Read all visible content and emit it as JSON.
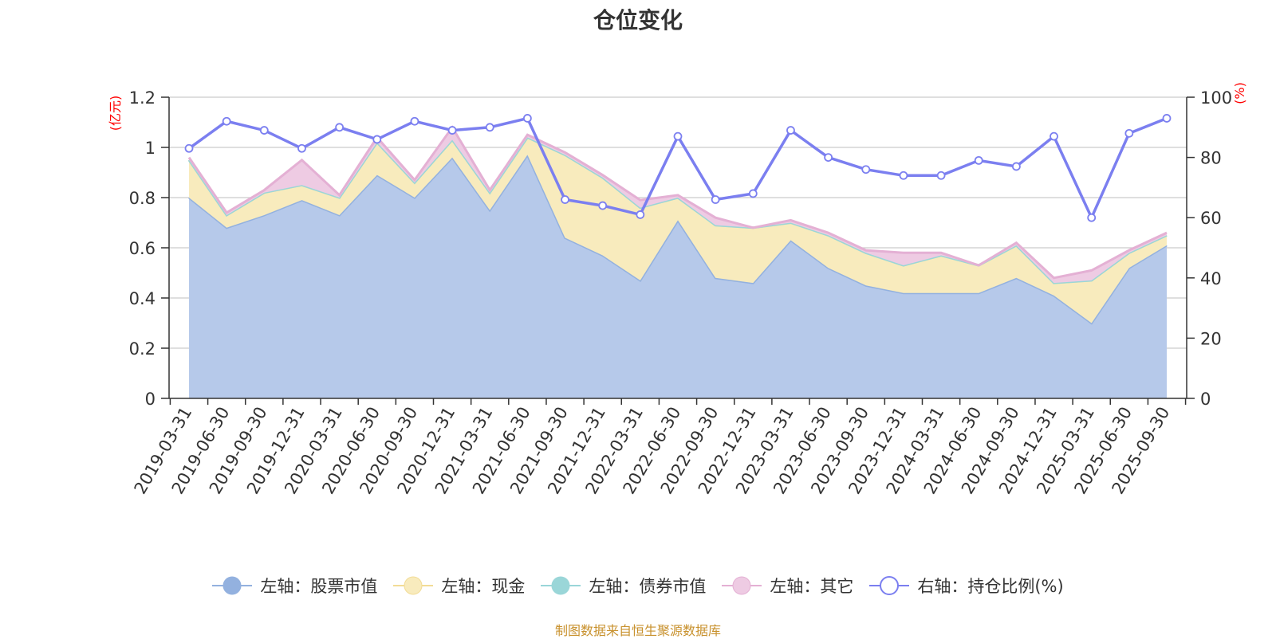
{
  "title": "仓位变化",
  "source_note": "制图数据来自恒生聚源数据库",
  "colors": {
    "stock_fill": "#b6c9ea",
    "stock_line": "#93b1df",
    "cash_fill": "#f8ebbd",
    "cash_line": "#f2dc96",
    "bond_fill": "#9ad6d8",
    "bond_line": "#9ad6d8",
    "other_fill": "#eecbe3",
    "other_line": "#e4b0d4",
    "ratio_line": "#7b7ff0",
    "axis_label_color": "#ff0000",
    "grid": "#cccccc",
    "text": "#333333"
  },
  "legend": [
    {
      "label": "左轴：股票市值",
      "key": "stock",
      "marker": "filled-circle-icon"
    },
    {
      "label": "左轴：现金",
      "key": "cash",
      "marker": "filled-circle-icon"
    },
    {
      "label": "左轴：债券市值",
      "key": "bond",
      "marker": "filled-circle-icon"
    },
    {
      "label": "左轴：其它",
      "key": "other",
      "marker": "filled-circle-icon"
    },
    {
      "label": "右轴：持仓比例(%)",
      "key": "ratio",
      "marker": "hollow-circle-icon"
    }
  ],
  "chart_data": {
    "type": "area",
    "stacked": true,
    "left_axis": {
      "label": "(亿元)",
      "min": 0,
      "max": 1.2,
      "ticks": [
        0,
        0.2,
        0.4,
        0.6,
        0.8,
        1,
        1.2
      ]
    },
    "right_axis": {
      "label": "(%)",
      "min": 0,
      "max": 100,
      "ticks": [
        0,
        20,
        40,
        60,
        80,
        100
      ]
    },
    "grid": true,
    "legend_position": "bottom",
    "categories": [
      "2019-03-31",
      "2019-06-30",
      "2019-09-30",
      "2019-12-31",
      "2020-03-31",
      "2020-06-30",
      "2020-09-30",
      "2020-12-31",
      "2021-03-31",
      "2021-06-30",
      "2021-09-30",
      "2021-12-31",
      "2022-03-31",
      "2022-06-30",
      "2022-09-30",
      "2022-12-31",
      "2023-03-31",
      "2023-06-30",
      "2023-09-30",
      "2023-12-31",
      "2024-03-31",
      "2024-06-30",
      "2024-09-30",
      "2024-12-31",
      "2025-03-31",
      "2025-06-30",
      "2025-09-30"
    ],
    "series": [
      {
        "name": "左轴：股票市值",
        "key": "stock",
        "axis": "left",
        "type": "area",
        "values": [
          0.8,
          0.68,
          0.73,
          0.79,
          0.73,
          0.89,
          0.8,
          0.96,
          0.75,
          0.97,
          0.64,
          0.57,
          0.47,
          0.71,
          0.48,
          0.46,
          0.63,
          0.52,
          0.45,
          0.42,
          0.42,
          0.42,
          0.48,
          0.41,
          0.3,
          0.52,
          0.61
        ]
      },
      {
        "name": "左轴：现金",
        "key": "cash",
        "axis": "left",
        "type": "area",
        "values": [
          0.15,
          0.05,
          0.09,
          0.06,
          0.07,
          0.13,
          0.06,
          0.07,
          0.07,
          0.07,
          0.33,
          0.31,
          0.29,
          0.09,
          0.21,
          0.22,
          0.07,
          0.13,
          0.13,
          0.11,
          0.15,
          0.11,
          0.13,
          0.05,
          0.17,
          0.06,
          0.04
        ]
      },
      {
        "name": "左轴：债券市值",
        "key": "bond",
        "axis": "left",
        "type": "area",
        "values": [
          0,
          0,
          0,
          0,
          0,
          0,
          0,
          0,
          0,
          0,
          0,
          0,
          0,
          0,
          0,
          0,
          0,
          0,
          0,
          0,
          0,
          0,
          0,
          0,
          0,
          0,
          0
        ]
      },
      {
        "name": "左轴：其它",
        "key": "other",
        "axis": "left",
        "type": "area",
        "values": [
          0.01,
          0.01,
          0.01,
          0.1,
          0.01,
          0.02,
          0.01,
          0.05,
          0.01,
          0.01,
          0.01,
          0.01,
          0.03,
          0.01,
          0.03,
          0.0,
          0.01,
          0.01,
          0.01,
          0.05,
          0.01,
          0.0,
          0.01,
          0.02,
          0.04,
          0.01,
          0.01
        ]
      },
      {
        "name": "右轴：持仓比例(%)",
        "key": "ratio",
        "axis": "right",
        "type": "line",
        "values": [
          83,
          92,
          89,
          83,
          90,
          86,
          92,
          89,
          90,
          93,
          66,
          64,
          61,
          87,
          66,
          68,
          89,
          80,
          76,
          74,
          74,
          79,
          77,
          87,
          60,
          88,
          93
        ]
      }
    ]
  }
}
